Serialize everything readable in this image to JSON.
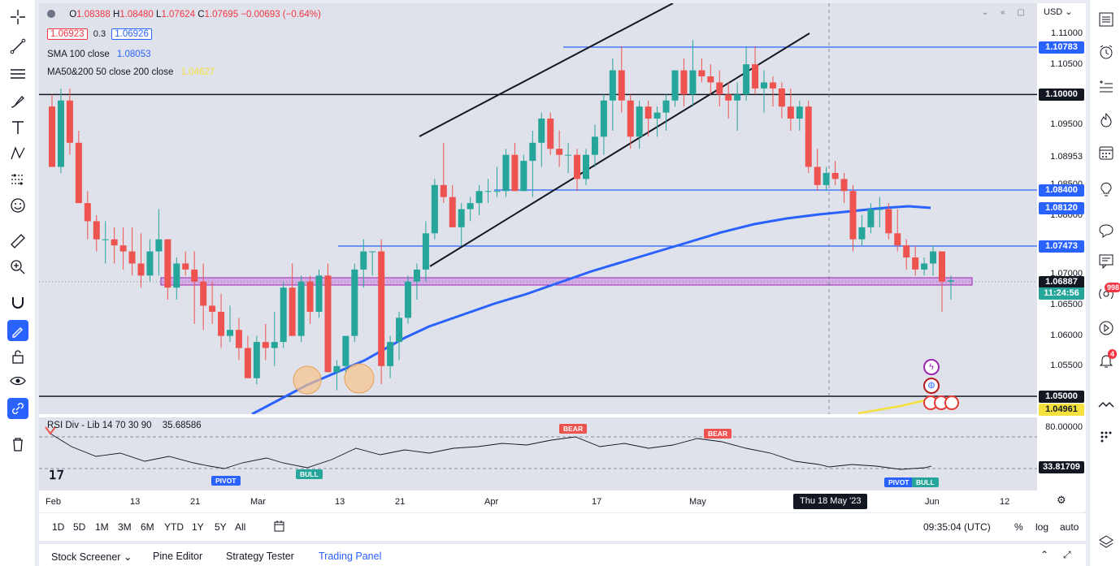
{
  "legend": {
    "ohlc": {
      "open_label": "O",
      "open": "1.08388",
      "high_label": "H",
      "high": "1.08480",
      "low_label": "L",
      "low": "1.07624",
      "close_label": "C",
      "close": "1.07695",
      "change": "−0.00693 (−0.64%)"
    },
    "bid": "1.06923",
    "spread": "0.3",
    "ask": "1.06926",
    "sma_label": "SMA 100 close",
    "sma_value": "1.08053",
    "ma_label": "MA50&200 50 close 200 close",
    "ma_value": "1.04627",
    "currency": "USD"
  },
  "price_axis": {
    "labels": [
      "1.11000",
      "1.10500",
      "1.09500",
      "1.08953",
      "1.08500",
      "1.08000",
      "1.07000",
      "1.06500",
      "1.06000",
      "1.05500",
      "80.00000"
    ],
    "tags": {
      "level1": "1.10783",
      "level2": "1.10000",
      "level3": "1.08400",
      "level4": "1.08120",
      "level5": "1.07473",
      "current": "1.06887",
      "countdown": "11:24:56",
      "level6": "1.05000",
      "level7": "1.04961",
      "rsi": "33.81709"
    }
  },
  "rsi": {
    "label": "RSI Div - Lib 14 70 30 90",
    "value": "35.68586",
    "signals": {
      "bear": "BEAR",
      "bull": "BULL",
      "pivot": "PIVOT"
    }
  },
  "time_axis": {
    "labels": [
      "Feb",
      "13",
      "21",
      "Mar",
      "13",
      "21",
      "Apr",
      "17",
      "May",
      "Jun",
      "12"
    ],
    "crosshair": "Thu 18 May '23"
  },
  "range_bar": {
    "ranges": [
      "1D",
      "5D",
      "1M",
      "3M",
      "6M",
      "YTD",
      "1Y",
      "5Y",
      "All"
    ],
    "clock": "09:35:04 (UTC)",
    "percent": "%",
    "log": "log",
    "auto": "auto"
  },
  "bottom_tabs": {
    "tabs": [
      "Stock Screener",
      "Pine Editor",
      "Strategy Tester",
      "Trading Panel"
    ]
  },
  "right_toolbar": {
    "alerts_badge": "998",
    "notif_badge": "4"
  },
  "colors": {
    "bull": "#26a69a",
    "bear": "#ef5350",
    "sma": "#2962ff",
    "ma200": "#f5e13d",
    "zone": "#c76be0"
  }
}
